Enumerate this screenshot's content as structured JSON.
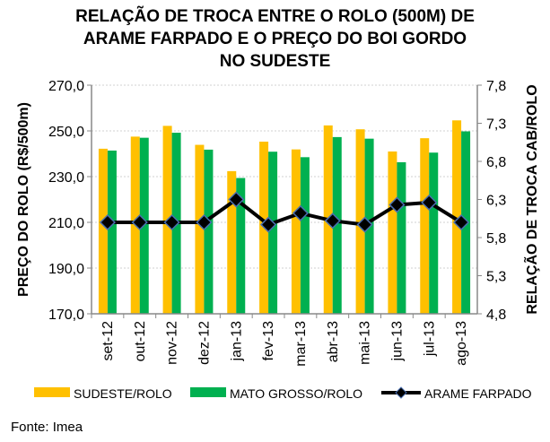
{
  "chart_data": {
    "type": "bar",
    "title_lines": [
      "RELAÇÃO DE TROCA ENTRE O ROLO (500M) DE",
      "ARAME FARPADO E O PREÇO DO BOI GORDO",
      "NO SUDESTE"
    ],
    "categories": [
      "set-12",
      "out-12",
      "nov-12",
      "dez-12",
      "jan-13",
      "fev-13",
      "mar-13",
      "abr-13",
      "mai-13",
      "jun-13",
      "jul-13",
      "ago-13"
    ],
    "series": [
      {
        "name": "SUDESTE/ROLO",
        "type": "bar",
        "axis": "left",
        "color": "#FFC000",
        "values": [
          242.2,
          247.5,
          252.2,
          243.9,
          232.4,
          245.3,
          241.9,
          252.4,
          250.7,
          241.0,
          246.8,
          254.6
        ]
      },
      {
        "name": "MATO GROSSO/ROLO",
        "type": "bar",
        "axis": "left",
        "color": "#00B050",
        "values": [
          241.4,
          247.0,
          249.2,
          241.8,
          229.4,
          240.9,
          238.5,
          247.3,
          246.6,
          236.3,
          240.5,
          249.8
        ]
      },
      {
        "name": "ARAME FARPADO",
        "type": "line",
        "axis": "right",
        "color": "#000000",
        "values": [
          6.0,
          6.0,
          6.0,
          6.0,
          6.3,
          5.97,
          6.12,
          6.02,
          5.97,
          6.23,
          6.26,
          6.0
        ]
      }
    ],
    "ylabel": "PREÇO DO ROLO (R$/500m)",
    "y2label": "RELAÇÃO DE TROCA CAB/ROLO",
    "ylim": [
      170,
      270
    ],
    "y2lim": [
      4.8,
      7.8
    ],
    "yticks": [
      "170,0",
      "190,0",
      "210,0",
      "230,0",
      "250,0",
      "270,0"
    ],
    "y2ticks": [
      "4,8",
      "5,3",
      "5,8",
      "6,3",
      "6,8",
      "7,3",
      "7,8"
    ],
    "grid": true,
    "legend": "bottom"
  },
  "source": "Fonte: Imea"
}
